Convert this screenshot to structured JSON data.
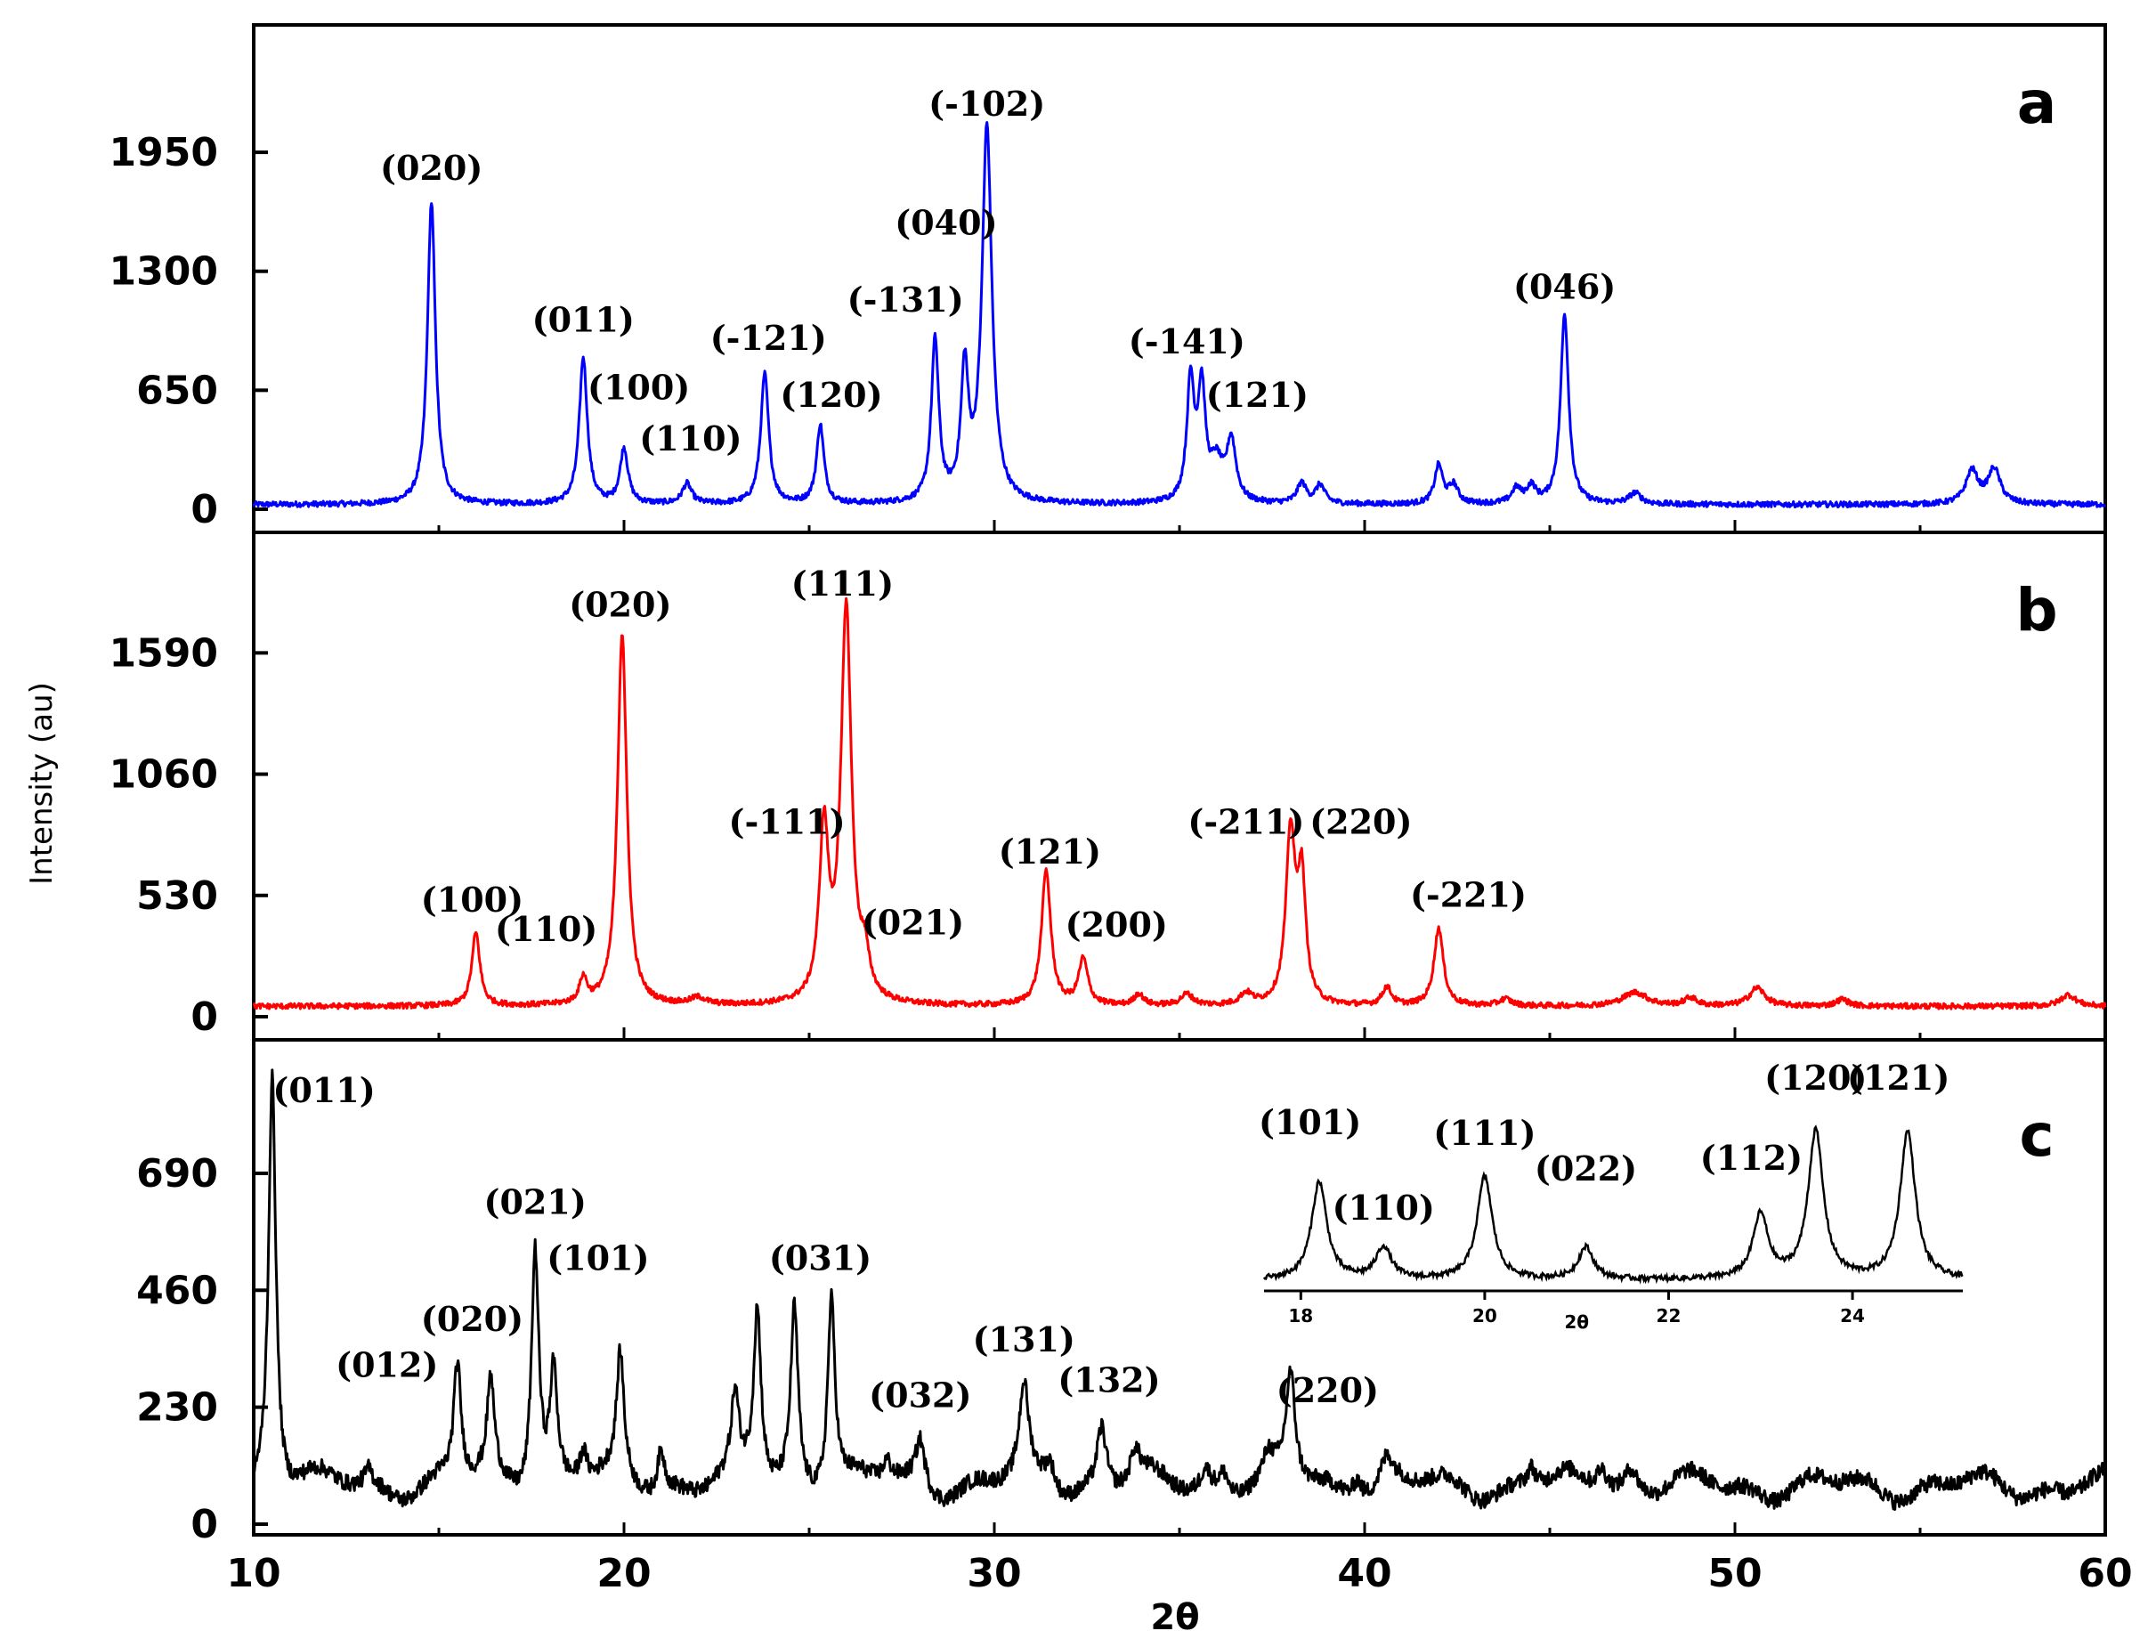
{
  "chart_data": {
    "type": "line",
    "x_label": "2θ",
    "y_label": "Intensity (au)",
    "xlim": [
      10,
      60
    ],
    "x_ticks": [
      "10",
      "20",
      "30",
      "40",
      "50",
      "60"
    ],
    "grid": false,
    "panels": [
      {
        "letter": "a",
        "color": "#0000ff",
        "ylim": [
          0,
          2500
        ],
        "y_ticks": [
          "0",
          "650",
          "1300",
          "1950"
        ],
        "baseline": 25,
        "peaks": [
          {
            "x": 14.8,
            "y": 1650,
            "w": 0.13
          },
          {
            "x": 18.9,
            "y": 800,
            "w": 0.13
          },
          {
            "x": 20.0,
            "y": 300,
            "w": 0.13
          },
          {
            "x": 21.7,
            "y": 110,
            "w": 0.15
          },
          {
            "x": 23.8,
            "y": 710,
            "w": 0.13
          },
          {
            "x": 25.3,
            "y": 430,
            "w": 0.12
          },
          {
            "x": 28.4,
            "y": 880,
            "w": 0.12
          },
          {
            "x": 29.2,
            "y": 700,
            "w": 0.12
          },
          {
            "x": 29.8,
            "y": 2050,
            "w": 0.16
          },
          {
            "x": 35.3,
            "y": 650,
            "w": 0.12
          },
          {
            "x": 35.6,
            "y": 600,
            "w": 0.12
          },
          {
            "x": 36.0,
            "y": 200,
            "w": 0.2
          },
          {
            "x": 36.4,
            "y": 330,
            "w": 0.15
          },
          {
            "x": 38.3,
            "y": 110,
            "w": 0.15
          },
          {
            "x": 38.8,
            "y": 100,
            "w": 0.15
          },
          {
            "x": 42.0,
            "y": 210,
            "w": 0.13
          },
          {
            "x": 42.4,
            "y": 100,
            "w": 0.15
          },
          {
            "x": 44.1,
            "y": 80,
            "w": 0.15
          },
          {
            "x": 44.5,
            "y": 90,
            "w": 0.15
          },
          {
            "x": 45.4,
            "y": 1040,
            "w": 0.13
          },
          {
            "x": 47.3,
            "y": 60,
            "w": 0.2
          },
          {
            "x": 56.4,
            "y": 180,
            "w": 0.2
          },
          {
            "x": 57.0,
            "y": 190,
            "w": 0.2
          }
        ],
        "labels": [
          {
            "text": "(020)",
            "x": 14.8,
            "y": 1800
          },
          {
            "text": "(011)",
            "x": 18.9,
            "y": 970
          },
          {
            "text": "(100)",
            "x": 20.4,
            "y": 600
          },
          {
            "text": "(110)",
            "x": 21.8,
            "y": 320
          },
          {
            "text": "(-121)",
            "x": 23.9,
            "y": 870
          },
          {
            "text": "(120)",
            "x": 25.6,
            "y": 560
          },
          {
            "text": "(-131)",
            "x": 27.6,
            "y": 1080
          },
          {
            "text": "(040)",
            "x": 28.7,
            "y": 1500
          },
          {
            "text": "(-102)",
            "x": 29.8,
            "y": 2150
          },
          {
            "text": "(-141)",
            "x": 35.2,
            "y": 850
          },
          {
            "text": "(121)",
            "x": 37.1,
            "y": 560
          },
          {
            "text": "(046)",
            "x": 45.4,
            "y": 1150
          }
        ]
      },
      {
        "letter": "b",
        "color": "#ff0000",
        "ylim": [
          0,
          2000
        ],
        "y_ticks": [
          "0",
          "530",
          "1060",
          "1590"
        ],
        "baseline": 45,
        "peaks": [
          {
            "x": 16.0,
            "y": 320,
            "w": 0.13
          },
          {
            "x": 18.9,
            "y": 110,
            "w": 0.12
          },
          {
            "x": 19.95,
            "y": 1630,
            "w": 0.15
          },
          {
            "x": 22.0,
            "y": 30,
            "w": 0.25
          },
          {
            "x": 25.4,
            "y": 740,
            "w": 0.15
          },
          {
            "x": 26.0,
            "y": 1720,
            "w": 0.17
          },
          {
            "x": 26.5,
            "y": 160,
            "w": 0.15
          },
          {
            "x": 31.4,
            "y": 590,
            "w": 0.15
          },
          {
            "x": 32.4,
            "y": 200,
            "w": 0.15
          },
          {
            "x": 33.9,
            "y": 50,
            "w": 0.15
          },
          {
            "x": 35.2,
            "y": 50,
            "w": 0.2
          },
          {
            "x": 36.8,
            "y": 50,
            "w": 0.2
          },
          {
            "x": 38.0,
            "y": 740,
            "w": 0.15
          },
          {
            "x": 38.3,
            "y": 530,
            "w": 0.13
          },
          {
            "x": 40.6,
            "y": 80,
            "w": 0.15
          },
          {
            "x": 42.0,
            "y": 340,
            "w": 0.15
          },
          {
            "x": 43.8,
            "y": 30,
            "w": 0.2
          },
          {
            "x": 47.3,
            "y": 60,
            "w": 0.4
          },
          {
            "x": 48.8,
            "y": 35,
            "w": 0.2
          },
          {
            "x": 50.6,
            "y": 80,
            "w": 0.25
          },
          {
            "x": 52.9,
            "y": 30,
            "w": 0.2
          },
          {
            "x": 59.0,
            "y": 50,
            "w": 0.25
          }
        ],
        "labels": [
          {
            "text": "(100)",
            "x": 15.9,
            "y": 460
          },
          {
            "text": "(110)",
            "x": 17.9,
            "y": 330
          },
          {
            "text": "(020)",
            "x": 19.9,
            "y": 1750
          },
          {
            "text": "(-111)",
            "x": 24.4,
            "y": 800
          },
          {
            "text": "(111)",
            "x": 25.9,
            "y": 1840
          },
          {
            "text": "(021)",
            "x": 27.8,
            "y": 360
          },
          {
            "text": "(121)",
            "x": 31.5,
            "y": 670
          },
          {
            "text": "(200)",
            "x": 33.3,
            "y": 350
          },
          {
            "text": "(-211)",
            "x": 36.8,
            "y": 800
          },
          {
            "text": "(220)",
            "x": 39.9,
            "y": 800
          },
          {
            "text": "(-221)",
            "x": 42.8,
            "y": 480
          }
        ]
      },
      {
        "letter": "c",
        "color": "#000000",
        "ylim": [
          0,
          900
        ],
        "y_ticks": [
          "0",
          "230",
          "460",
          "690"
        ],
        "baseline": 75,
        "peaks": [
          {
            "x": 10.5,
            "y": 820,
            "w": 0.12
          },
          {
            "x": 13.1,
            "y": 30,
            "w": 0.12
          },
          {
            "x": 15.5,
            "y": 230,
            "w": 0.12
          },
          {
            "x": 16.4,
            "y": 190,
            "w": 0.12
          },
          {
            "x": 17.6,
            "y": 480,
            "w": 0.12
          },
          {
            "x": 18.1,
            "y": 220,
            "w": 0.12
          },
          {
            "x": 18.9,
            "y": 60,
            "w": 0.12
          },
          {
            "x": 19.9,
            "y": 240,
            "w": 0.12
          },
          {
            "x": 21.0,
            "y": 80,
            "w": 0.12
          },
          {
            "x": 23.0,
            "y": 150,
            "w": 0.12
          },
          {
            "x": 23.6,
            "y": 340,
            "w": 0.12
          },
          {
            "x": 24.6,
            "y": 350,
            "w": 0.12
          },
          {
            "x": 25.6,
            "y": 380,
            "w": 0.12
          },
          {
            "x": 27.1,
            "y": 40,
            "w": 0.15
          },
          {
            "x": 28.0,
            "y": 90,
            "w": 0.15
          },
          {
            "x": 30.8,
            "y": 180,
            "w": 0.15
          },
          {
            "x": 31.5,
            "y": 50,
            "w": 0.15
          },
          {
            "x": 32.9,
            "y": 120,
            "w": 0.15
          },
          {
            "x": 33.8,
            "y": 60,
            "w": 0.15
          },
          {
            "x": 35.7,
            "y": 40,
            "w": 0.15
          },
          {
            "x": 36.2,
            "y": 40,
            "w": 0.15
          },
          {
            "x": 37.4,
            "y": 40,
            "w": 0.15
          },
          {
            "x": 38.0,
            "y": 210,
            "w": 0.15
          },
          {
            "x": 39.8,
            "y": 40,
            "w": 0.15
          },
          {
            "x": 40.6,
            "y": 50,
            "w": 0.2
          },
          {
            "x": 44.5,
            "y": 40,
            "w": 0.15
          },
          {
            "x": 46.4,
            "y": 50,
            "w": 0.2
          },
          {
            "x": 47.2,
            "y": 40,
            "w": 0.2
          }
        ],
        "labels": [
          {
            "text": "(011)",
            "x": 11.9,
            "y": 830
          },
          {
            "text": "(012)",
            "x": 13.6,
            "y": 290
          },
          {
            "text": "(020)",
            "x": 15.9,
            "y": 380
          },
          {
            "text": "(021)",
            "x": 17.6,
            "y": 610
          },
          {
            "text": "(101)",
            "x": 19.3,
            "y": 500
          },
          {
            "text": "(031)",
            "x": 25.3,
            "y": 500
          },
          {
            "text": "(032)",
            "x": 28.0,
            "y": 230
          },
          {
            "text": "(131)",
            "x": 30.8,
            "y": 340
          },
          {
            "text": "(132)",
            "x": 33.1,
            "y": 260
          },
          {
            "text": "(220)",
            "x": 39.0,
            "y": 240
          }
        ],
        "inset": {
          "xlim": [
            17.6,
            25.2
          ],
          "ylim": [
            0,
            1
          ],
          "x_ticks": [
            "18",
            "20",
            "22",
            "24"
          ],
          "x_label": "2θ",
          "baseline": 0.06,
          "peaks": [
            {
              "x": 18.2,
              "y": 0.55,
              "w": 0.1
            },
            {
              "x": 18.9,
              "y": 0.18,
              "w": 0.1
            },
            {
              "x": 20.0,
              "y": 0.58,
              "w": 0.1
            },
            {
              "x": 21.1,
              "y": 0.18,
              "w": 0.1
            },
            {
              "x": 23.0,
              "y": 0.36,
              "w": 0.1
            },
            {
              "x": 23.6,
              "y": 0.83,
              "w": 0.1
            },
            {
              "x": 24.6,
              "y": 0.83,
              "w": 0.1
            }
          ],
          "labels": [
            {
              "text": "(101)",
              "x": 18.1,
              "y": 0.88
            },
            {
              "text": "(110)",
              "x": 18.9,
              "y": 0.4
            },
            {
              "text": "(111)",
              "x": 20.0,
              "y": 0.82
            },
            {
              "text": "(022)",
              "x": 21.1,
              "y": 0.62
            },
            {
              "text": "(112)",
              "x": 22.9,
              "y": 0.68
            },
            {
              "text": "(120)",
              "x": 23.6,
              "y": 1.13
            },
            {
              "text": "(121)",
              "x": 24.5,
              "y": 1.13
            }
          ]
        }
      }
    ]
  }
}
